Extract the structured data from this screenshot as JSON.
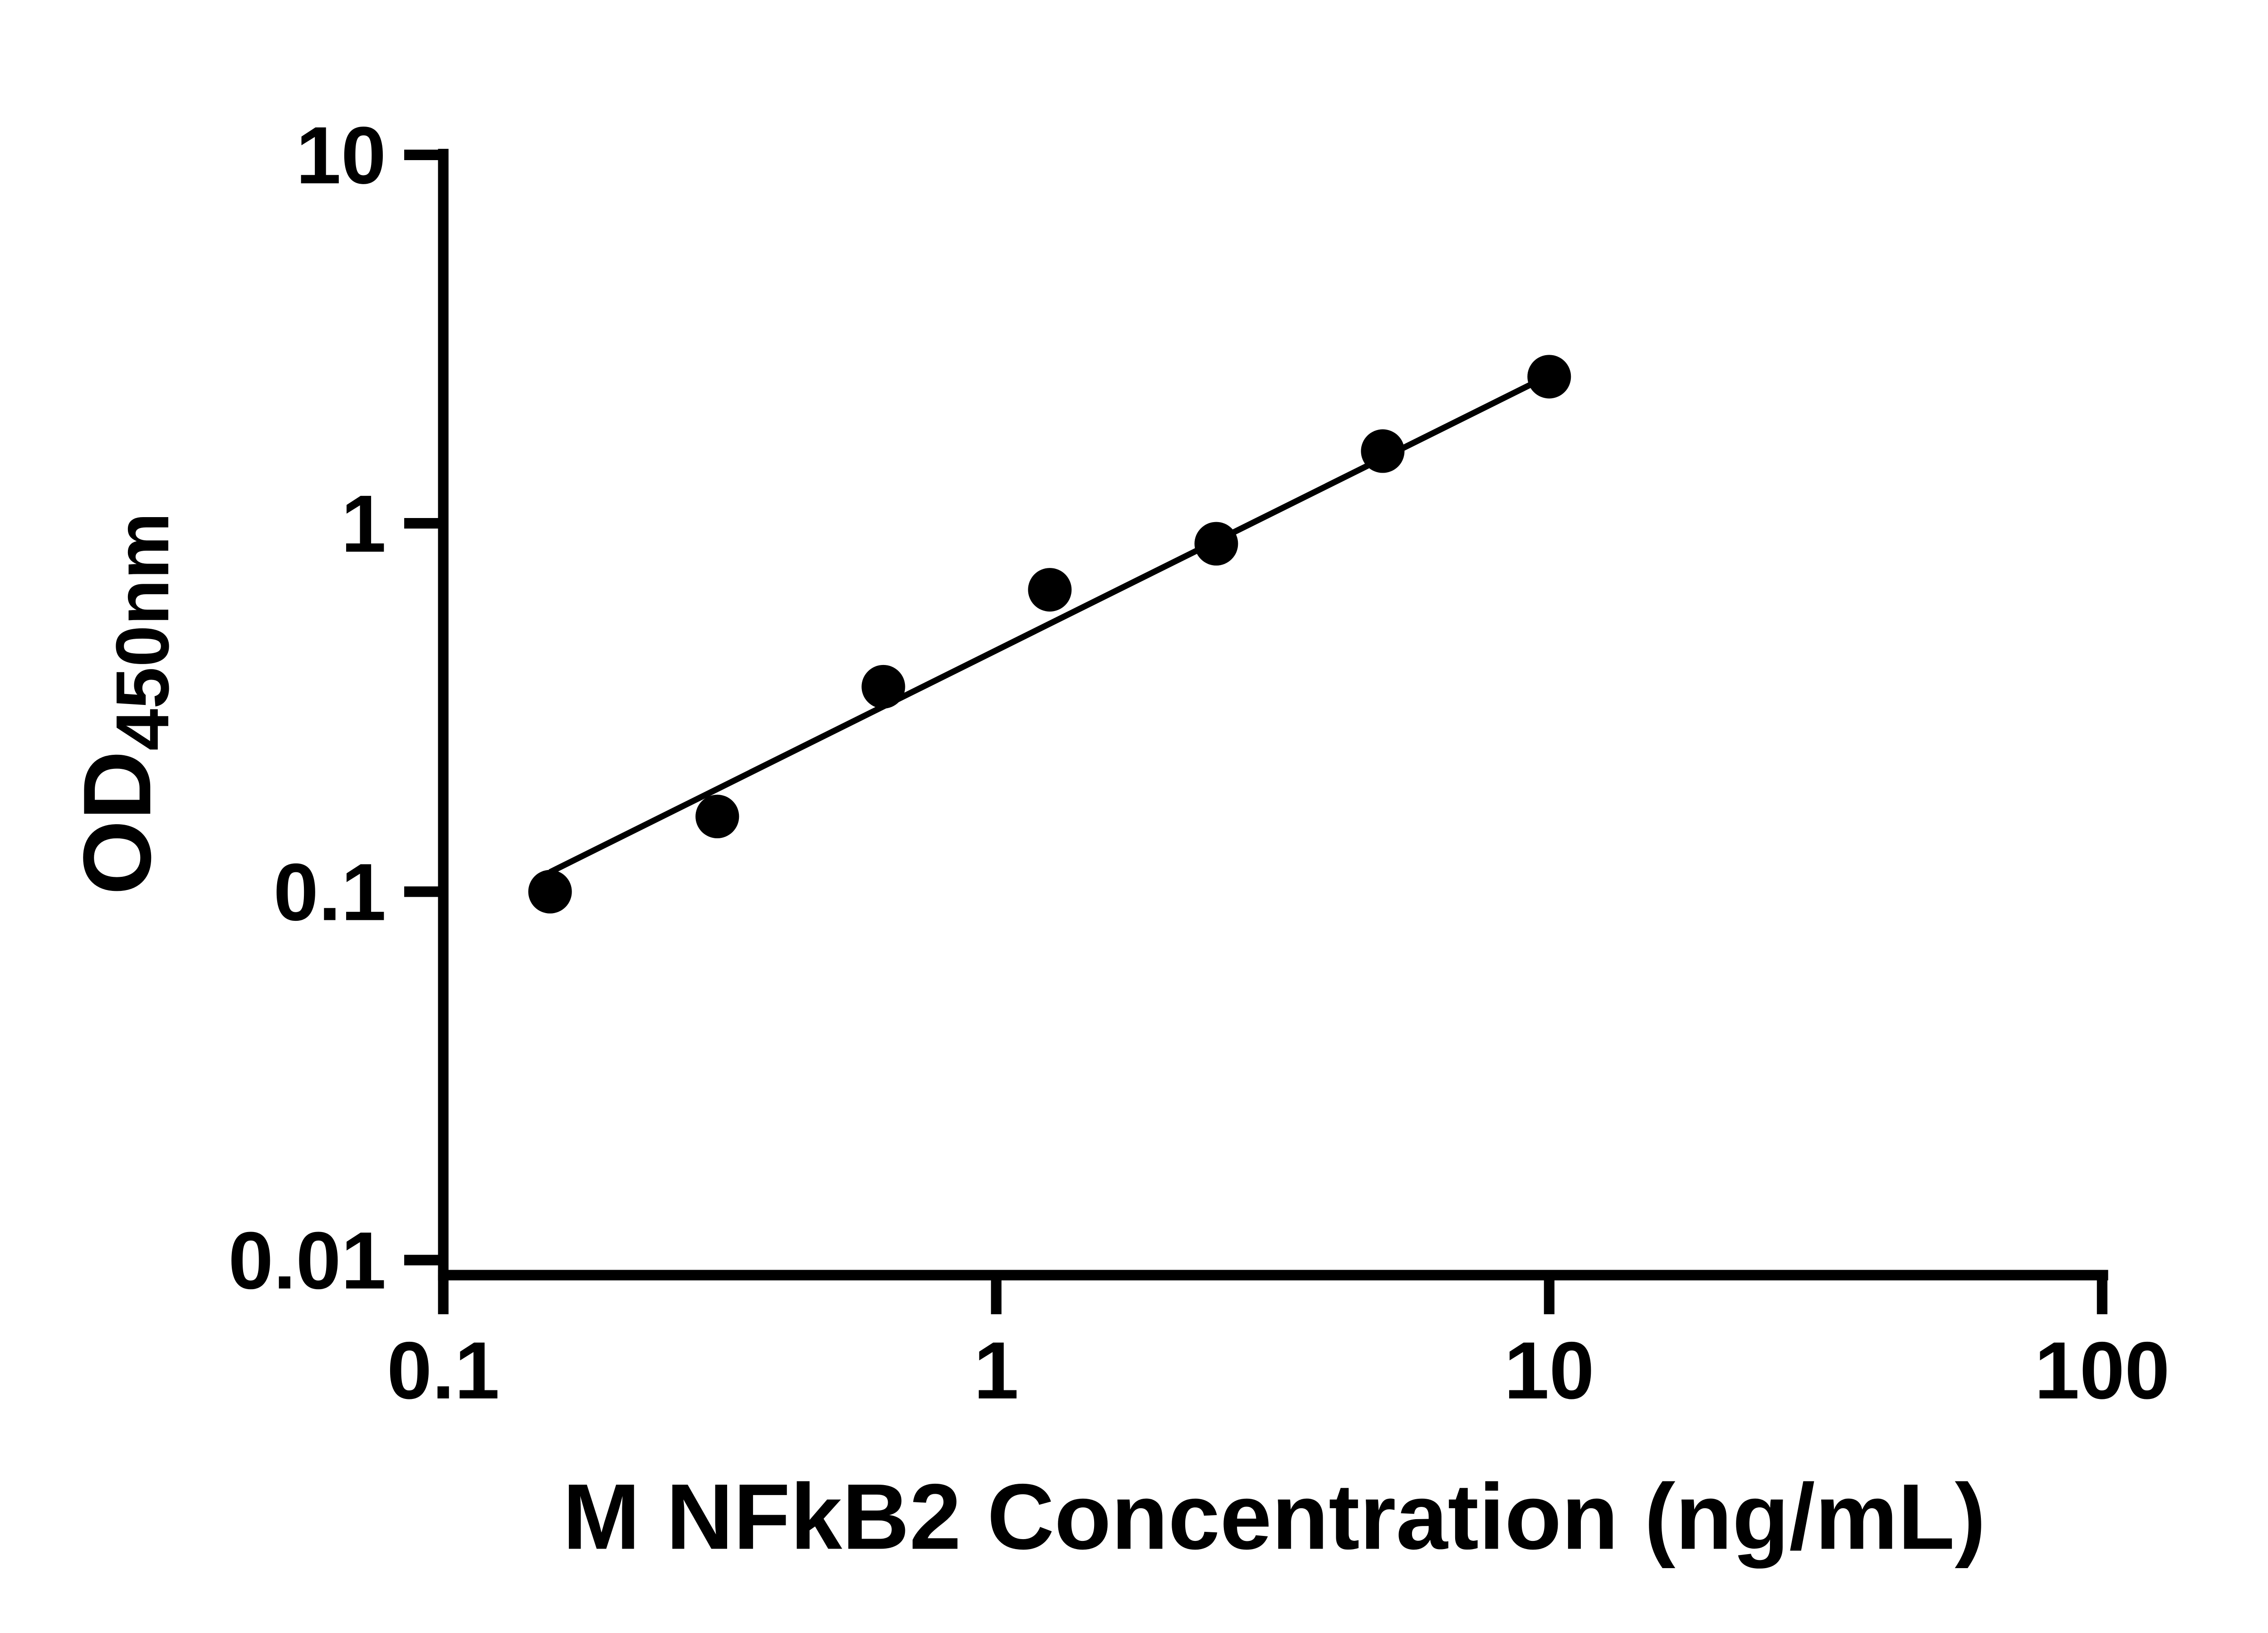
{
  "chart_data": {
    "type": "scatter",
    "title": "",
    "xlabel": "M NFkB2 Concentration (ng/mL)",
    "ylabel_main": "OD",
    "ylabel_sub": "450nm",
    "x_scale": "log",
    "y_scale": "log",
    "xlim": [
      0.1,
      100
    ],
    "ylim": [
      0.01,
      10
    ],
    "grid": false,
    "legend": "none",
    "x_ticks": [
      {
        "value": 0.1,
        "label": "0.1"
      },
      {
        "value": 1,
        "label": "1"
      },
      {
        "value": 10,
        "label": "10"
      },
      {
        "value": 100,
        "label": "100"
      }
    ],
    "y_ticks": [
      {
        "value": 10,
        "label": "10"
      },
      {
        "value": 1,
        "label": "1"
      },
      {
        "value": 0.1,
        "label": "0.1"
      },
      {
        "value": 0.01,
        "label": "0.01"
      }
    ],
    "points": [
      {
        "x": 0.156,
        "y": 0.1
      },
      {
        "x": 0.313,
        "y": 0.16
      },
      {
        "x": 0.625,
        "y": 0.36
      },
      {
        "x": 1.25,
        "y": 0.66
      },
      {
        "x": 2.5,
        "y": 0.88
      },
      {
        "x": 5,
        "y": 1.57
      },
      {
        "x": 10,
        "y": 2.5
      }
    ],
    "fit_line": {
      "x1": 0.156,
      "y1": 0.113,
      "x2": 10,
      "y2": 2.52
    },
    "marker_color": "#000000",
    "line_color": "#000000",
    "axis_color": "#000000"
  }
}
